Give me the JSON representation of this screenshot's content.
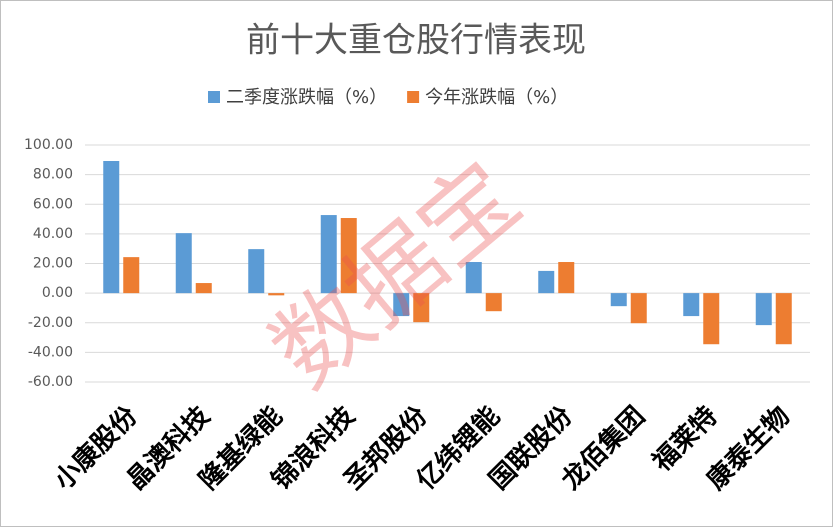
{
  "chart_data": {
    "type": "bar",
    "title": "前十大重仓股行情表现",
    "categories": [
      "小康股份",
      "晶澳科技",
      "隆基绿能",
      "锦浪科技",
      "圣邦股份",
      "亿纬锂能",
      "国联股份",
      "龙佰集团",
      "福莱特",
      "康泰生物"
    ],
    "series": [
      {
        "name": "二季度涨跌幅（%）",
        "color": "#5b9bd5",
        "values": [
          89.2,
          40.5,
          29.7,
          52.7,
          -15.5,
          21.0,
          15.0,
          -8.8,
          -15.5,
          -21.6
        ]
      },
      {
        "name": "今年涨跌幅（%）",
        "color": "#ed7d31",
        "values": [
          24.3,
          6.8,
          -1.5,
          50.7,
          -19.6,
          -12.2,
          21.0,
          -20.3,
          -34.5,
          -34.5
        ]
      }
    ],
    "ylim": [
      -60,
      100
    ],
    "yticks": [
      {
        "value": -60,
        "label": "-60.00"
      },
      {
        "value": -40,
        "label": "-40.00"
      },
      {
        "value": -20,
        "label": "-20.00"
      },
      {
        "value": 0,
        "label": "0.00"
      },
      {
        "value": 20,
        "label": "20.00"
      },
      {
        "value": 40,
        "label": "40.00"
      },
      {
        "value": 60,
        "label": "60.00"
      },
      {
        "value": 80,
        "label": "80.00"
      },
      {
        "value": 100,
        "label": "100.00"
      }
    ],
    "grid": true,
    "legend": "top",
    "watermark": "数据宝"
  }
}
